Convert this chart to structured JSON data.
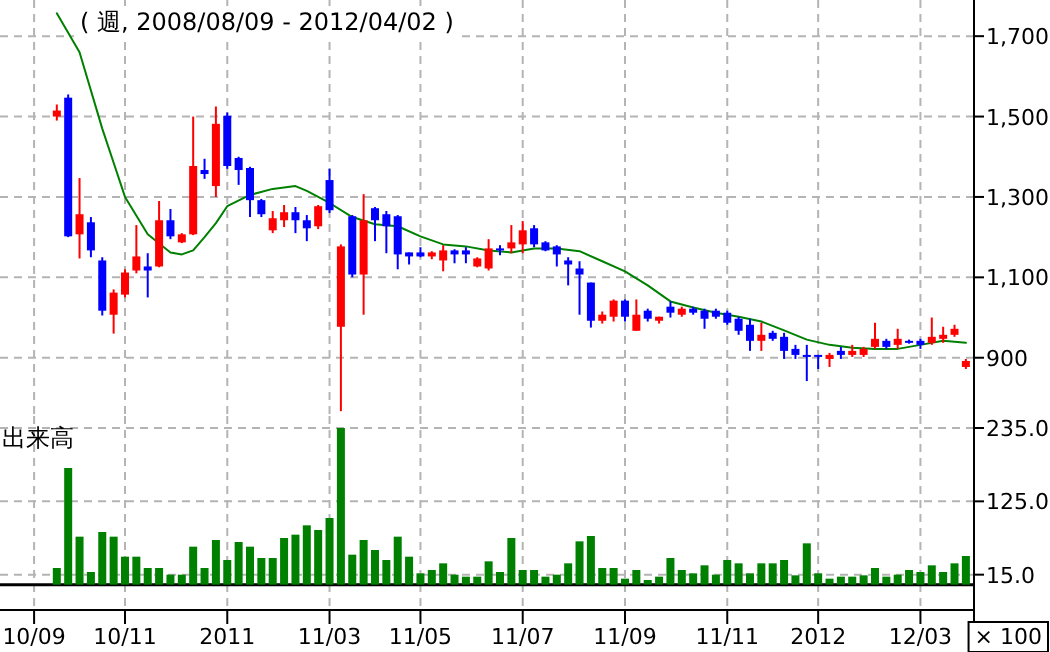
{
  "chart_data": [
    {
      "type": "candlestick",
      "title": "( 週, 2008/08/09 - 2012/04/02 )",
      "x": [
        "2010-09-20",
        "2010-09-27",
        "2010-10-04",
        "2010-10-11",
        "2010-10-18",
        "2010-10-25",
        "2010-11-01",
        "2010-11-08",
        "2010-11-15",
        "2010-11-22",
        "2010-11-29",
        "2010-12-06",
        "2010-12-13",
        "2010-12-20",
        "2010-12-27",
        "2011-01-03",
        "2011-01-10",
        "2011-01-17",
        "2011-01-24",
        "2011-01-31",
        "2011-02-07",
        "2011-02-14",
        "2011-02-21",
        "2011-02-28",
        "2011-03-07",
        "2011-03-14",
        "2011-03-21",
        "2011-03-28",
        "2011-04-04",
        "2011-04-11",
        "2011-04-18",
        "2011-04-25",
        "2011-05-02",
        "2011-05-09",
        "2011-05-16",
        "2011-05-23",
        "2011-05-30",
        "2011-06-06",
        "2011-06-13",
        "2011-06-20",
        "2011-06-27",
        "2011-07-04",
        "2011-07-11",
        "2011-07-18",
        "2011-07-25",
        "2011-08-01",
        "2011-08-08",
        "2011-08-15",
        "2011-08-22",
        "2011-08-29",
        "2011-09-05",
        "2011-09-12",
        "2011-09-19",
        "2011-09-26",
        "2011-10-03",
        "2011-10-10",
        "2011-10-17",
        "2011-10-24",
        "2011-10-31",
        "2011-11-07",
        "2011-11-14",
        "2011-11-21",
        "2011-11-28",
        "2011-12-05",
        "2011-12-12",
        "2011-12-19",
        "2011-12-26",
        "2012-01-02",
        "2012-01-09",
        "2012-01-16",
        "2012-01-23",
        "2012-01-30",
        "2012-02-06",
        "2012-02-13",
        "2012-02-20",
        "2012-02-27",
        "2012-03-05",
        "2012-03-12",
        "2012-03-19",
        "2012-03-26",
        "2012-04-02"
      ],
      "ohlc": [
        [
          1500,
          1530,
          1490,
          1515
        ],
        [
          1547,
          1555,
          1200,
          1202
        ],
        [
          1207,
          1347,
          1147,
          1257
        ],
        [
          1237,
          1250,
          1150,
          1167
        ],
        [
          1142,
          1150,
          1005,
          1017
        ],
        [
          1007,
          1070,
          960,
          1062
        ],
        [
          1057,
          1120,
          1050,
          1112
        ],
        [
          1117,
          1230,
          1110,
          1152
        ],
        [
          1127,
          1160,
          1050,
          1117
        ],
        [
          1127,
          1290,
          1125,
          1242
        ],
        [
          1242,
          1270,
          1195,
          1202
        ],
        [
          1187,
          1210,
          1185,
          1207
        ],
        [
          1207,
          1500,
          1205,
          1377
        ],
        [
          1367,
          1395,
          1345,
          1357
        ],
        [
          1327,
          1525,
          1300,
          1482
        ],
        [
          1502,
          1510,
          1370,
          1377
        ],
        [
          1397,
          1400,
          1330,
          1367
        ],
        [
          1372,
          1375,
          1250,
          1292
        ],
        [
          1292,
          1295,
          1250,
          1257
        ],
        [
          1217,
          1265,
          1210,
          1247
        ],
        [
          1242,
          1280,
          1225,
          1262
        ],
        [
          1262,
          1275,
          1210,
          1242
        ],
        [
          1242,
          1255,
          1190,
          1222
        ],
        [
          1227,
          1280,
          1220,
          1277
        ],
        [
          1342,
          1370,
          1260,
          1267
        ],
        [
          977,
          1182,
          767,
          1177
        ],
        [
          1252,
          1255,
          1100,
          1107
        ],
        [
          1107,
          1307,
          1007,
          1242
        ],
        [
          1272,
          1275,
          1190,
          1242
        ],
        [
          1257,
          1265,
          1160,
          1227
        ],
        [
          1252,
          1255,
          1120,
          1157
        ],
        [
          1162,
          1162,
          1132,
          1152
        ],
        [
          1162,
          1175,
          1150,
          1152
        ],
        [
          1152,
          1165,
          1145,
          1162
        ],
        [
          1142,
          1180,
          1115,
          1167
        ],
        [
          1167,
          1170,
          1135,
          1157
        ],
        [
          1167,
          1175,
          1135,
          1157
        ],
        [
          1127,
          1150,
          1125,
          1147
        ],
        [
          1122,
          1195,
          1117,
          1172
        ],
        [
          1172,
          1180,
          1155,
          1167
        ],
        [
          1172,
          1230,
          1160,
          1187
        ],
        [
          1182,
          1240,
          1160,
          1217
        ],
        [
          1222,
          1230,
          1175,
          1182
        ],
        [
          1187,
          1190,
          1165,
          1167
        ],
        [
          1177,
          1180,
          1127,
          1157
        ],
        [
          1142,
          1150,
          1080,
          1132
        ],
        [
          1122,
          1140,
          1007,
          1107
        ],
        [
          1087,
          1087,
          975,
          992
        ],
        [
          992,
          1015,
          985,
          1007
        ],
        [
          1002,
          1045,
          990,
          1042
        ],
        [
          1042,
          1045,
          990,
          1002
        ],
        [
          967,
          1045,
          967,
          1007
        ],
        [
          1017,
          1022,
          990,
          997
        ],
        [
          992,
          1002,
          985,
          1002
        ],
        [
          1027,
          1040,
          1000,
          1012
        ],
        [
          1007,
          1027,
          1002,
          1022
        ],
        [
          1022,
          1027,
          1007,
          1012
        ],
        [
          1017,
          1022,
          972,
          997
        ],
        [
          1017,
          1022,
          997,
          1002
        ],
        [
          1012,
          1017,
          982,
          987
        ],
        [
          997,
          1002,
          957,
          967
        ],
        [
          982,
          997,
          917,
          942
        ],
        [
          942,
          987,
          917,
          957
        ],
        [
          962,
          967,
          942,
          947
        ],
        [
          952,
          962,
          897,
          917
        ],
        [
          922,
          932,
          897,
          907
        ],
        [
          907,
          932,
          842,
          902
        ],
        [
          907,
          907,
          872,
          902
        ],
        [
          897,
          912,
          877,
          907
        ],
        [
          917,
          927,
          897,
          907
        ],
        [
          907,
          932,
          902,
          917
        ],
        [
          907,
          927,
          902,
          922
        ],
        [
          927,
          987,
          922,
          947
        ],
        [
          942,
          947,
          922,
          927
        ],
        [
          932,
          972,
          922,
          947
        ],
        [
          942,
          945,
          935,
          937
        ],
        [
          942,
          947,
          922,
          932
        ],
        [
          937,
          1000,
          932,
          952
        ],
        [
          947,
          977,
          937,
          957
        ],
        [
          957,
          982,
          952,
          972
        ],
        [
          877,
          897,
          872,
          892
        ]
      ],
      "colors": [
        "#ff0000",
        "#0000ff",
        "#ff0000",
        "#0000ff",
        "#0000ff",
        "#ff0000",
        "#ff0000",
        "#ff0000",
        "#0000ff",
        "#ff0000",
        "#0000ff",
        "#ff0000",
        "#ff0000",
        "#0000ff",
        "#ff0000",
        "#0000ff",
        "#0000ff",
        "#0000ff",
        "#0000ff",
        "#ff0000",
        "#ff0000",
        "#0000ff",
        "#0000ff",
        "#ff0000",
        "#0000ff",
        "#ff0000",
        "#0000ff",
        "#ff0000",
        "#0000ff",
        "#0000ff",
        "#0000ff",
        "#0000ff",
        "#0000ff",
        "#ff0000",
        "#ff0000",
        "#0000ff",
        "#0000ff",
        "#ff0000",
        "#ff0000",
        "#0000ff",
        "#ff0000",
        "#ff0000",
        "#0000ff",
        "#0000ff",
        "#0000ff",
        "#0000ff",
        "#0000ff",
        "#0000ff",
        "#ff0000",
        "#ff0000",
        "#0000ff",
        "#ff0000",
        "#0000ff",
        "#ff0000",
        "#0000ff",
        "#ff0000",
        "#0000ff",
        "#0000ff",
        "#0000ff",
        "#0000ff",
        "#0000ff",
        "#0000ff",
        "#ff0000",
        "#0000ff",
        "#0000ff",
        "#0000ff",
        "#0000ff",
        "#0000ff",
        "#ff0000",
        "#0000ff",
        "#ff0000",
        "#ff0000",
        "#ff0000",
        "#0000ff",
        "#ff0000",
        "#0000ff",
        "#0000ff",
        "#ff0000",
        "#ff0000",
        "#ff0000",
        "#ff0000"
      ],
      "series": [
        {
          "type": "line",
          "color": "#008000",
          "x": [
            "2010-09-20",
            "2010-10-04",
            "2010-10-18",
            "2010-10-25",
            "2010-11-01",
            "2010-11-15",
            "2010-11-29",
            "2010-12-06",
            "2010-12-13",
            "2010-12-20",
            "2010-12-27",
            "2011-01-03",
            "2011-01-17",
            "2011-01-31",
            "2011-02-14",
            "2011-02-21",
            "2011-03-07",
            "2011-03-21",
            "2011-04-04",
            "2011-04-18",
            "2011-05-02",
            "2011-05-16",
            "2011-05-30",
            "2011-06-13",
            "2011-06-27",
            "2011-07-11",
            "2011-07-25",
            "2011-08-08",
            "2011-08-22",
            "2011-09-05",
            "2011-09-19",
            "2011-10-03",
            "2011-10-17",
            "2011-10-31",
            "2011-11-14",
            "2011-11-28",
            "2011-12-12",
            "2011-12-26",
            "2012-01-09",
            "2012-01-23",
            "2012-02-06",
            "2012-02-20",
            "2012-03-05",
            "2012-03-19",
            "2012-04-02"
          ],
          "values": [
            1757,
            1660,
            1470,
            1385,
            1300,
            1207,
            1162,
            1157,
            1167,
            1200,
            1235,
            1277,
            1305,
            1320,
            1327,
            1315,
            1285,
            1250,
            1232,
            1227,
            1202,
            1182,
            1177,
            1167,
            1162,
            1172,
            1172,
            1165,
            1140,
            1115,
            1080,
            1040,
            1025,
            1012,
            1002,
            990,
            968,
            945,
            932,
            925,
            922,
            922,
            932,
            942,
            937
          ]
        }
      ],
      "xlim": [
        "2010-08-16",
        "2012-04-07"
      ],
      "xticks": [
        {
          "value": "2010-09-06",
          "label": null
        },
        {
          "value": "2010-11-01",
          "label": null
        },
        {
          "value": "2011-01-03",
          "label": null
        },
        {
          "value": "2011-03-07",
          "label": null
        },
        {
          "value": "2011-05-02",
          "label": null
        },
        {
          "value": "2011-07-04",
          "label": null
        },
        {
          "value": "2011-09-05",
          "label": null
        },
        {
          "value": "2011-11-07",
          "label": null
        },
        {
          "value": "2012-01-02",
          "label": null
        },
        {
          "value": "2012-03-05",
          "label": null
        }
      ],
      "ylim": [
        755,
        1790
      ],
      "yticks": [
        900,
        {
          "value": 1100,
          "label": "1,100"
        },
        {
          "value": 1300,
          "label": "1,300"
        },
        {
          "value": 1500,
          "label": "1,500"
        },
        {
          "value": 1700,
          "label": "1,700"
        }
      ],
      "grid": true,
      "tick_labels": "y"
    },
    {
      "type": "bar",
      "title": "出来高",
      "x": [
        "2010-09-20",
        "2010-09-27",
        "2010-10-04",
        "2010-10-11",
        "2010-10-18",
        "2010-10-25",
        "2010-11-01",
        "2010-11-08",
        "2010-11-15",
        "2010-11-22",
        "2010-11-29",
        "2010-12-06",
        "2010-12-13",
        "2010-12-20",
        "2010-12-27",
        "2011-01-03",
        "2011-01-10",
        "2011-01-17",
        "2011-01-24",
        "2011-01-31",
        "2011-02-07",
        "2011-02-14",
        "2011-02-21",
        "2011-02-28",
        "2011-03-07",
        "2011-03-14",
        "2011-03-21",
        "2011-03-28",
        "2011-04-04",
        "2011-04-11",
        "2011-04-18",
        "2011-04-25",
        "2011-05-02",
        "2011-05-09",
        "2011-05-16",
        "2011-05-23",
        "2011-05-30",
        "2011-06-06",
        "2011-06-13",
        "2011-06-20",
        "2011-06-27",
        "2011-07-04",
        "2011-07-11",
        "2011-07-18",
        "2011-07-25",
        "2011-08-01",
        "2011-08-08",
        "2011-08-15",
        "2011-08-22",
        "2011-08-29",
        "2011-09-05",
        "2011-09-12",
        "2011-09-19",
        "2011-09-26",
        "2011-10-03",
        "2011-10-10",
        "2011-10-17",
        "2011-10-24",
        "2011-10-31",
        "2011-11-07",
        "2011-11-14",
        "2011-11-21",
        "2011-11-28",
        "2011-12-05",
        "2011-12-12",
        "2011-12-19",
        "2011-12-26",
        "2012-01-02",
        "2012-01-09",
        "2012-01-16",
        "2012-01-23",
        "2012-01-30",
        "2012-02-06",
        "2012-02-13",
        "2012-02-20",
        "2012-02-27",
        "2012-03-05",
        "2012-03-12",
        "2012-03-19",
        "2012-03-26",
        "2012-04-02"
      ],
      "series": [
        {
          "color": "#008000",
          "values": [
            25,
            175,
            72,
            19,
            79,
            72,
            42,
            42,
            25,
            25,
            15,
            15,
            57,
            25,
            67,
            37,
            64,
            57,
            40,
            40,
            70,
            75,
            89,
            82,
            100,
            235,
            45,
            67,
            52,
            37,
            72,
            42,
            17,
            22,
            32,
            15,
            12,
            12,
            35,
            19,
            70,
            22,
            22,
            12,
            15,
            32,
            65,
            73,
            25,
            25,
            9,
            22,
            7,
            12,
            40,
            22,
            17,
            29,
            15,
            37,
            32,
            17,
            32,
            32,
            37,
            14,
            62,
            17,
            9,
            12,
            12,
            14,
            25,
            12,
            15,
            22,
            19,
            29,
            19,
            32,
            43
          ]
        }
      ],
      "xlim": [
        "2010-08-16",
        "2012-04-07"
      ],
      "xticks": [
        {
          "value": "2010-09-06",
          "label": "10/09"
        },
        {
          "value": "2010-11-01",
          "label": "10/11"
        },
        {
          "value": "2011-01-03",
          "label": "2011"
        },
        {
          "value": "2011-03-07",
          "label": "11/03"
        },
        {
          "value": "2011-05-02",
          "label": "11/05"
        },
        {
          "value": "2011-07-04",
          "label": "11/07"
        },
        {
          "value": "2011-09-05",
          "label": "11/09"
        },
        {
          "value": "2011-11-07",
          "label": "11/11"
        },
        {
          "value": "2012-01-02",
          "label": "2012"
        },
        {
          "value": "2012-03-05",
          "label": "12/03"
        }
      ],
      "ylim": [
        -38,
        253
      ],
      "yticks": [
        {
          "value": 15,
          "label": "15.0"
        },
        {
          "value": 125,
          "label": "125.0"
        },
        {
          "value": 235,
          "label": "235.0"
        }
      ],
      "ref_lines": [
        {
          "axis": "y",
          "value": 0,
          "color": "#000000"
        }
      ],
      "annotations": [
        "× 100"
      ],
      "grid": true
    }
  ]
}
